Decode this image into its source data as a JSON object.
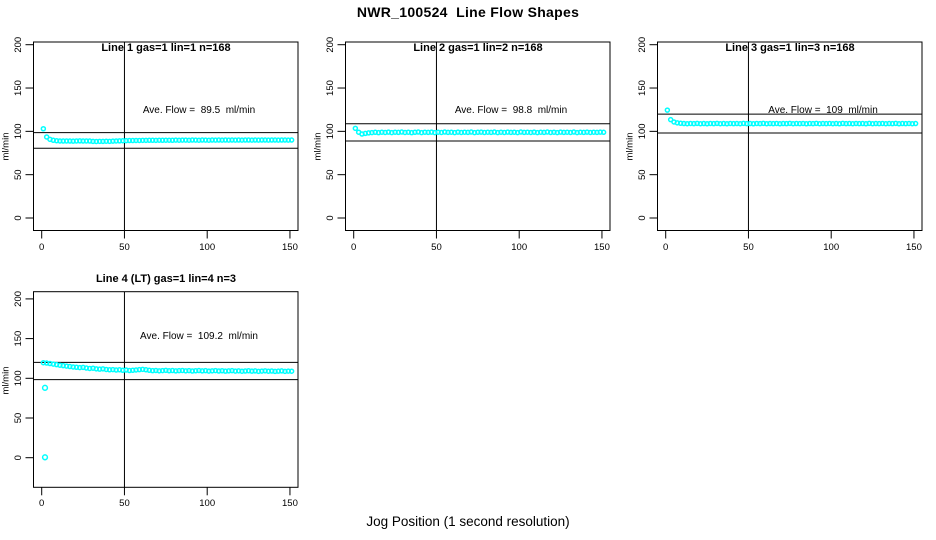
{
  "window": {
    "title": "NWR_100524  Line Flow Shapes"
  },
  "colors": {
    "point": "#00FFFF",
    "axis": "#000000",
    "background": "#FFFFFF"
  },
  "chart_data": {
    "type": "scatter",
    "title": "NWR_100524  Line Flow Shapes",
    "xlabel": "Jog Position (1 second resolution)",
    "ylabel": "ml/min",
    "grid": false,
    "legend": "none",
    "layout": "2x3 grid, 4 panels used",
    "x_ticks": [
      0,
      50,
      100,
      150
    ],
    "y_ticks": [
      0,
      50,
      100,
      150,
      200
    ],
    "xlim": [
      -5,
      155
    ],
    "ylim_row1": [
      -15,
      201
    ],
    "ylim_row2": [
      -37,
      212
    ],
    "vline_x": 50,
    "point_marker": "open-circle",
    "subplots": [
      {
        "title": "Line 1 gas=1 lin=1 n=168",
        "annotation": "Ave. Flow =  89.5  ml/min",
        "ave_flow": 89.5,
        "n": 168,
        "ref_lines_y": [
          98.5,
          80.5
        ],
        "x_start": 1,
        "x_step": 2,
        "y": [
          103.0,
          93.5,
          90.8,
          89.7,
          89.2,
          88.9,
          88.8,
          88.9,
          88.8,
          88.7,
          88.9,
          89.0,
          88.8,
          88.9,
          88.8,
          88.4,
          88.3,
          88.5,
          88.4,
          88.6,
          88.5,
          88.7,
          88.9,
          89.0,
          89.2,
          89.3,
          89.4,
          89.4,
          89.5,
          89.5,
          89.6,
          89.6,
          89.7,
          89.7,
          89.6,
          89.8,
          89.7,
          89.8,
          89.8,
          89.7,
          89.9,
          89.8,
          89.9,
          89.9,
          89.8,
          90.0,
          89.9,
          89.8,
          90.0,
          89.9,
          89.8,
          90.0,
          89.9,
          90.0,
          89.9,
          90.0,
          89.9,
          90.0,
          89.9,
          90.0,
          89.9,
          90.0,
          90.0,
          89.9,
          90.0,
          89.9,
          90.0,
          90.0,
          89.9,
          90.0,
          90.0,
          89.9,
          90.0,
          90.0,
          89.9,
          90.0
        ],
        "outliers": []
      },
      {
        "title": "Line 2 gas=1 lin=2 n=168",
        "annotation": "Ave. Flow =  98.8  ml/min",
        "ave_flow": 98.8,
        "n": 168,
        "ref_lines_y": [
          108.7,
          88.9
        ],
        "x_start": 1,
        "x_step": 2,
        "y": [
          103.5,
          99.0,
          96.9,
          97.6,
          98.2,
          98.6,
          98.9,
          98.5,
          99.0,
          98.7,
          99.1,
          98.6,
          99.0,
          98.8,
          99.2,
          98.7,
          99.0,
          98.5,
          98.9,
          99.2,
          98.6,
          99.0,
          98.8,
          99.1,
          98.6,
          99.0,
          98.7,
          99.2,
          98.8,
          99.0,
          98.6,
          99.1,
          98.7,
          99.0,
          98.8,
          99.2,
          98.6,
          98.9,
          99.1,
          98.7,
          99.0,
          98.8,
          99.2,
          98.6,
          99.0,
          98.7,
          99.1,
          98.8,
          99.0,
          98.6,
          99.2,
          98.8,
          99.0,
          98.7,
          99.1,
          98.6,
          99.0,
          98.8,
          99.2,
          98.7,
          99.0,
          98.6,
          99.1,
          98.8,
          99.0,
          98.7,
          99.2,
          98.6,
          99.0,
          98.8,
          99.1,
          98.7,
          99.0,
          98.8,
          99.1,
          98.9
        ],
        "outliers": []
      },
      {
        "title": "Line 3 gas=1 lin=3 n=168",
        "annotation": "Ave. Flow =  109  ml/min",
        "ave_flow": 109,
        "n": 168,
        "ref_lines_y": [
          119.9,
          98.1
        ],
        "x_start": 1,
        "x_step": 2,
        "y": [
          124.5,
          113.5,
          110.8,
          109.8,
          109.3,
          109.0,
          108.8,
          109.1,
          108.9,
          109.2,
          108.8,
          109.0,
          108.7,
          109.1,
          108.9,
          109.2,
          108.8,
          109.0,
          108.7,
          109.1,
          108.9,
          109.0,
          108.8,
          109.2,
          108.9,
          109.0,
          108.7,
          109.1,
          108.9,
          109.2,
          108.8,
          109.0,
          108.9,
          109.1,
          108.7,
          109.0,
          108.9,
          109.2,
          108.8,
          109.0,
          108.9,
          109.1,
          108.7,
          109.0,
          108.9,
          109.2,
          108.8,
          109.0,
          108.9,
          109.1,
          108.8,
          109.0,
          108.7,
          109.2,
          108.9,
          109.0,
          108.8,
          109.1,
          108.9,
          109.0,
          108.7,
          109.2,
          108.8,
          109.0,
          108.9,
          109.1,
          108.8,
          109.0,
          108.9,
          109.2,
          108.7,
          109.0,
          108.9,
          109.1,
          108.8,
          109.0
        ],
        "outliers": []
      },
      {
        "title": "Line 4 (LT) gas=1 lin=4 n=3",
        "annotation": "Ave. Flow =  109.2  ml/min",
        "ave_flow": 109.2,
        "n": 3,
        "ref_lines_y": [
          120.1,
          98.3
        ],
        "x_start": 1,
        "x_step": 2,
        "y": [
          119.6,
          119.2,
          118.6,
          117.9,
          117.2,
          116.5,
          115.9,
          115.4,
          114.8,
          114.3,
          113.9,
          113.5,
          113.7,
          112.9,
          112.4,
          112.7,
          111.9,
          111.5,
          111.9,
          111.1,
          110.7,
          111.0,
          110.4,
          110.7,
          110.1,
          110.4,
          109.8,
          110.1,
          110.5,
          110.9,
          111.3,
          110.7,
          110.1,
          109.6,
          109.9,
          109.4,
          109.7,
          110.0,
          109.5,
          109.8,
          109.3,
          109.6,
          109.9,
          109.4,
          109.7,
          109.2,
          109.5,
          109.8,
          109.3,
          109.6,
          109.1,
          109.4,
          109.7,
          109.2,
          109.5,
          109.0,
          109.3,
          109.6,
          109.1,
          109.4,
          108.9,
          109.2,
          109.5,
          109.0,
          109.3,
          108.8,
          109.1,
          109.4,
          108.9,
          109.2,
          108.7,
          109.0,
          109.3,
          108.8,
          109.1,
          108.9
        ],
        "outliers": [
          [
            2,
            88
          ],
          [
            2,
            0.5
          ]
        ]
      }
    ]
  }
}
